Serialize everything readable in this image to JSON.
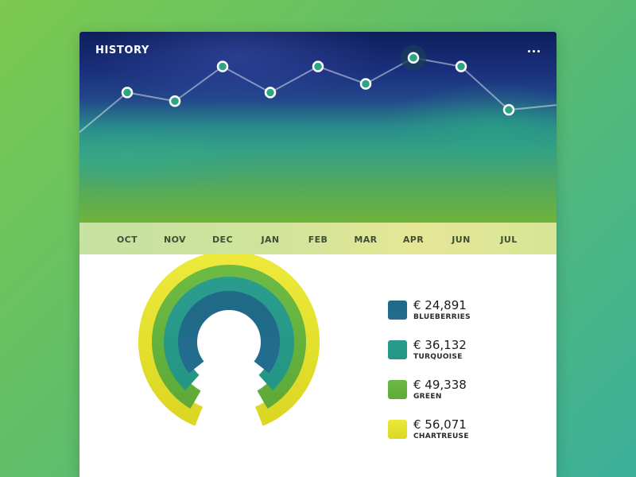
{
  "history": {
    "title": "HISTORY",
    "more_icon": "more-horizontal-icon",
    "months": [
      "OCT",
      "NOV",
      "DEC",
      "JAN",
      "FEB",
      "MAR",
      "APR",
      "JUN",
      "JUL"
    ],
    "highlighted_month": "APR"
  },
  "chart_data": {
    "type": "line",
    "categories": [
      "OCT",
      "NOV",
      "DEC",
      "JAN",
      "FEB",
      "MAR",
      "APR",
      "JUN",
      "JUL"
    ],
    "series": [
      {
        "values": [
          50,
          40,
          80,
          50,
          80,
          60,
          90,
          80,
          30
        ]
      }
    ],
    "ylim": [
      -100,
      120
    ],
    "grid": false,
    "line_color": "#ffffff",
    "marker_fill": "#2fa387",
    "highlight_color": "#1a3f5a"
  },
  "summary": {
    "items": [
      {
        "value": "€ 24,891",
        "label": "BLUEBERRIES",
        "color": "#1f6a86",
        "color_end": "#236c8f"
      },
      {
        "value": "€ 36,132",
        "label": "TURQUOISE",
        "color": "#2a9c8e",
        "color_end": "#249684"
      },
      {
        "value": "€ 49,338",
        "label": "GREEN",
        "color": "#6cba44",
        "color_end": "#5faa38"
      },
      {
        "value": "€ 56,071",
        "label": "CHARTREUSE",
        "color": "#ece93a",
        "color_end": "#dbd723"
      }
    ]
  }
}
